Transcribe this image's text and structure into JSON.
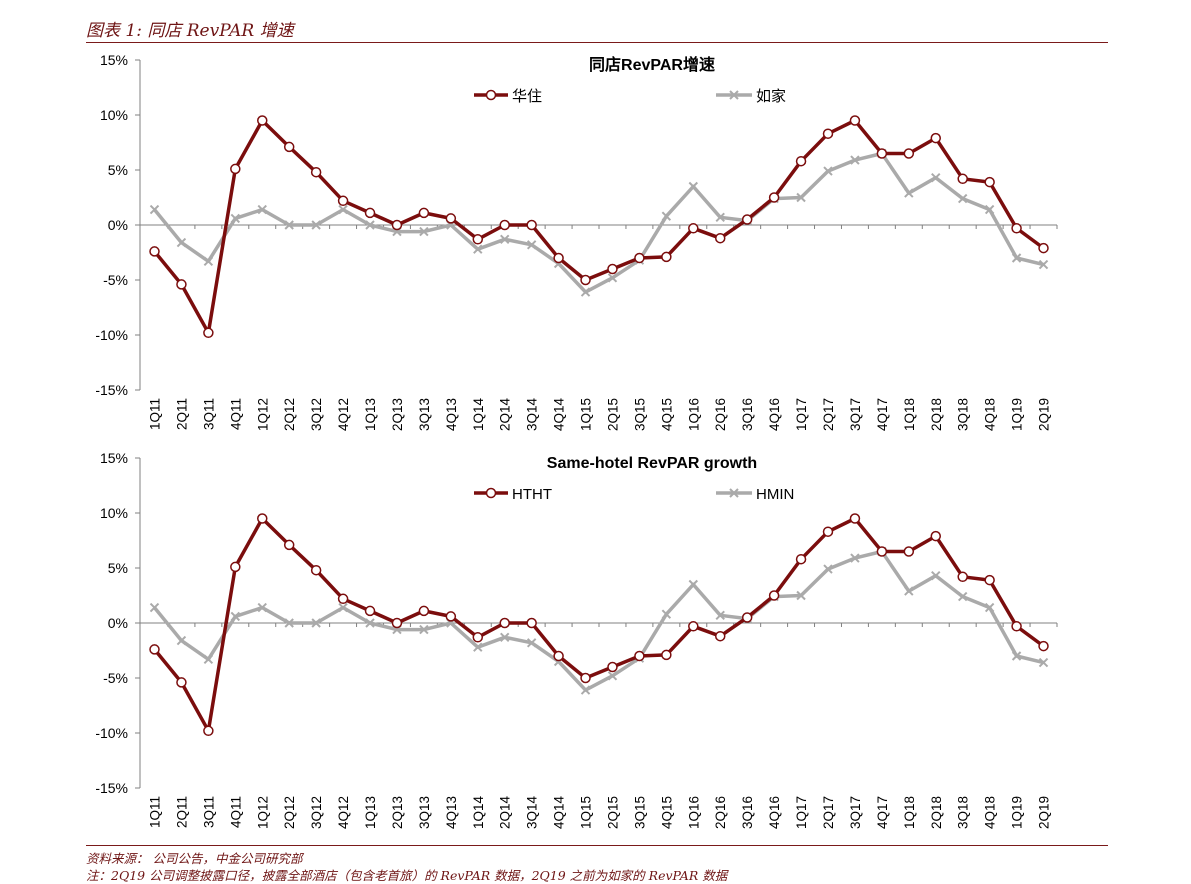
{
  "figure": {
    "title": "图表 1: 同店 RevPAR 增速",
    "source": "资料来源： 公司公告，中金公司研究部",
    "note": "注：2Q19 公司调整披露口径，披露全部酒店（包含老首旅）的 RevPAR 数据，2Q19 之前为如家的 RevPAR 数据"
  },
  "colors": {
    "series1": "#7b0d0d",
    "series2": "#aaaaaa",
    "axis": "#808080",
    "rule": "#7a1a1a"
  },
  "chart_data": [
    {
      "type": "line",
      "title": "同店RevPAR增速",
      "xlabel": "",
      "ylabel": "",
      "ylim": [
        -15,
        15
      ],
      "yticks": [
        -15,
        -10,
        -5,
        0,
        5,
        10,
        15
      ],
      "ytick_labels": [
        "-15%",
        "-10%",
        "-5%",
        "0%",
        "5%",
        "10%",
        "15%"
      ],
      "grid": false,
      "legend": "top-center",
      "categories": [
        "1Q11",
        "2Q11",
        "3Q11",
        "4Q11",
        "1Q12",
        "2Q12",
        "3Q12",
        "4Q12",
        "1Q13",
        "2Q13",
        "3Q13",
        "4Q13",
        "1Q14",
        "2Q14",
        "3Q14",
        "4Q14",
        "1Q15",
        "2Q15",
        "3Q15",
        "4Q15",
        "1Q16",
        "2Q16",
        "3Q16",
        "4Q16",
        "1Q17",
        "2Q17",
        "3Q17",
        "4Q17",
        "1Q18",
        "2Q18",
        "3Q18",
        "4Q18",
        "1Q19",
        "2Q19"
      ],
      "series": [
        {
          "name": "华住",
          "marker": "circle",
          "values": [
            -2.4,
            -5.4,
            -9.8,
            5.1,
            9.5,
            7.1,
            4.8,
            2.2,
            1.1,
            0.0,
            1.1,
            0.6,
            -1.3,
            0.0,
            0.0,
            -3.0,
            -5.0,
            -4.0,
            -3.0,
            -2.9,
            -0.3,
            -1.2,
            0.5,
            2.5,
            5.8,
            8.3,
            9.5,
            6.5,
            6.5,
            7.9,
            4.2,
            3.9,
            -0.3,
            -2.1
          ]
        },
        {
          "name": "如家",
          "marker": "x",
          "values": [
            1.4,
            -1.6,
            -3.3,
            0.6,
            1.4,
            0.0,
            0.0,
            1.4,
            0.0,
            -0.6,
            -0.6,
            0.0,
            -2.2,
            -1.3,
            -1.8,
            -3.5,
            -6.1,
            -4.8,
            -3.2,
            0.8,
            3.5,
            0.7,
            0.4,
            2.4,
            2.5,
            4.9,
            5.9,
            6.5,
            2.9,
            4.3,
            2.4,
            1.4,
            -3.0,
            -3.6
          ]
        }
      ]
    },
    {
      "type": "line",
      "title": "Same-hotel RevPAR growth",
      "xlabel": "",
      "ylabel": "",
      "ylim": [
        -15,
        15
      ],
      "yticks": [
        -15,
        -10,
        -5,
        0,
        5,
        10,
        15
      ],
      "ytick_labels": [
        "-15%",
        "-10%",
        "-5%",
        "0%",
        "5%",
        "10%",
        "15%"
      ],
      "grid": false,
      "legend": "top-center",
      "categories": [
        "1Q11",
        "2Q11",
        "3Q11",
        "4Q11",
        "1Q12",
        "2Q12",
        "3Q12",
        "4Q12",
        "1Q13",
        "2Q13",
        "3Q13",
        "4Q13",
        "1Q14",
        "2Q14",
        "3Q14",
        "4Q14",
        "1Q15",
        "2Q15",
        "3Q15",
        "4Q15",
        "1Q16",
        "2Q16",
        "3Q16",
        "4Q16",
        "1Q17",
        "2Q17",
        "3Q17",
        "4Q17",
        "1Q18",
        "2Q18",
        "3Q18",
        "4Q18",
        "1Q19",
        "2Q19"
      ],
      "series": [
        {
          "name": "HTHT",
          "marker": "circle",
          "values": [
            -2.4,
            -5.4,
            -9.8,
            5.1,
            9.5,
            7.1,
            4.8,
            2.2,
            1.1,
            0.0,
            1.1,
            0.6,
            -1.3,
            0.0,
            0.0,
            -3.0,
            -5.0,
            -4.0,
            -3.0,
            -2.9,
            -0.3,
            -1.2,
            0.5,
            2.5,
            5.8,
            8.3,
            9.5,
            6.5,
            6.5,
            7.9,
            4.2,
            3.9,
            -0.3,
            -2.1
          ]
        },
        {
          "name": "HMIN",
          "marker": "x",
          "values": [
            1.4,
            -1.6,
            -3.3,
            0.6,
            1.4,
            0.0,
            0.0,
            1.4,
            0.0,
            -0.6,
            -0.6,
            0.0,
            -2.2,
            -1.3,
            -1.8,
            -3.5,
            -6.1,
            -4.8,
            -3.2,
            0.8,
            3.5,
            0.7,
            0.4,
            2.4,
            2.5,
            4.9,
            5.9,
            6.5,
            2.9,
            4.3,
            2.4,
            1.4,
            -3.0,
            -3.6
          ]
        }
      ]
    }
  ]
}
